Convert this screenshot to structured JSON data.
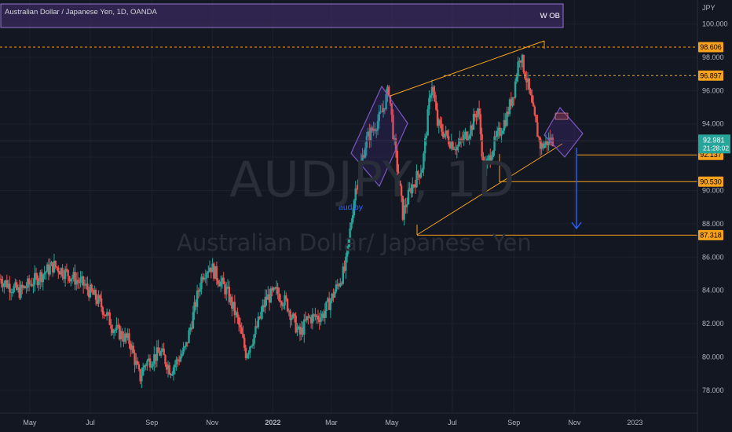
{
  "header": {
    "symbol_title": "Australian Dollar / Japanese Yen, 1D, OANDA",
    "box_label": "W OB"
  },
  "watermark": {
    "ticker": "AUDJPY, 1D",
    "name": "Australian Dollar/ Japanese Yen"
  },
  "annotations": {
    "text_label": "audjpy"
  },
  "price_axis": {
    "currency": "JPY",
    "current_price": "92.981",
    "countdown": "21:28:02",
    "levels": [
      {
        "value": 98.606,
        "label": "98.606",
        "style": "dashed"
      },
      {
        "value": 96.897,
        "label": "96.897",
        "style": "dashed"
      },
      {
        "value": 92.137,
        "label": "92.137",
        "style": "solid"
      },
      {
        "value": 90.53,
        "label": "90.530",
        "style": "solid"
      },
      {
        "value": 87.318,
        "label": "87.318",
        "style": "solid"
      }
    ]
  },
  "colors": {
    "background": "#131722",
    "bull": "#26a69a",
    "bear": "#ef5350",
    "level": "#f7a21b",
    "zone_border": "#7e57c2",
    "arrow": "#2962ff",
    "price_tag": "#26a69a"
  },
  "chart_data": {
    "type": "candlestick",
    "title": "Australian Dollar / Japanese Yen, 1D, OANDA",
    "y_unit": "JPY",
    "ylim": [
      77,
      101
    ],
    "y_ticks": [
      "78.000",
      "80.000",
      "82.000",
      "84.000",
      "86.000",
      "88.000",
      "90.000",
      "92.000",
      "94.000",
      "96.000",
      "98.000",
      "100.000"
    ],
    "x_ticks": [
      "May",
      "Jul",
      "Sep",
      "Nov",
      "2022",
      "Mar",
      "May",
      "Jul",
      "Sep",
      "Nov",
      "2023"
    ],
    "x_tick_dates": [
      "2021-05-01",
      "2021-07-01",
      "2021-09-01",
      "2021-11-01",
      "2022-01-01",
      "2022-03-01",
      "2022-05-01",
      "2022-07-01",
      "2022-09-01",
      "2022-11-01",
      "2023-01-01"
    ],
    "x_range": [
      "2021-04-01",
      "2023-03-05"
    ],
    "path_points": [
      [
        "2021-04-01",
        84.7
      ],
      [
        "2021-04-20",
        83.9
      ],
      [
        "2021-05-10",
        84.8
      ],
      [
        "2021-05-25",
        85.5
      ],
      [
        "2021-06-08",
        85.0
      ],
      [
        "2021-06-25",
        84.3
      ],
      [
        "2021-07-10",
        83.3
      ],
      [
        "2021-07-25",
        81.7
      ],
      [
        "2021-08-10",
        80.9
      ],
      [
        "2021-08-20",
        78.7
      ],
      [
        "2021-08-25",
        79.6
      ],
      [
        "2021-09-10",
        80.3
      ],
      [
        "2021-09-20",
        79.2
      ],
      [
        "2021-10-05",
        80.5
      ],
      [
        "2021-10-22",
        85.0
      ],
      [
        "2021-10-30",
        85.5
      ],
      [
        "2021-11-05",
        84.9
      ],
      [
        "2021-11-16",
        83.9
      ],
      [
        "2021-11-26",
        82.3
      ],
      [
        "2021-12-05",
        80.2
      ],
      [
        "2021-12-15",
        81.6
      ],
      [
        "2021-12-25",
        83.5
      ],
      [
        "2022-01-05",
        83.9
      ],
      [
        "2022-01-15",
        83.2
      ],
      [
        "2022-01-28",
        81.3
      ],
      [
        "2022-02-05",
        82.3
      ],
      [
        "2022-02-20",
        82.5
      ],
      [
        "2022-03-01",
        83.5
      ],
      [
        "2022-03-15",
        85.3
      ],
      [
        "2022-03-25",
        90.0
      ],
      [
        "2022-04-05",
        93.0
      ],
      [
        "2022-04-20",
        94.5
      ],
      [
        "2022-04-28",
        96.1
      ],
      [
        "2022-05-03",
        93.0
      ],
      [
        "2022-05-12",
        88.6
      ],
      [
        "2022-05-20",
        90.1
      ],
      [
        "2022-06-01",
        91.5
      ],
      [
        "2022-06-10",
        96.6
      ],
      [
        "2022-06-16",
        94.0
      ],
      [
        "2022-06-28",
        93.0
      ],
      [
        "2022-07-06",
        92.6
      ],
      [
        "2022-07-20",
        93.8
      ],
      [
        "2022-07-27",
        95.0
      ],
      [
        "2022-08-02",
        91.0
      ],
      [
        "2022-08-10",
        92.5
      ],
      [
        "2022-08-25",
        94.5
      ],
      [
        "2022-09-01",
        96.0
      ],
      [
        "2022-09-07",
        98.3
      ],
      [
        "2022-09-14",
        96.6
      ],
      [
        "2022-09-21",
        94.5
      ],
      [
        "2022-09-28",
        92.6
      ],
      [
        "2022-10-06",
        93.0
      ],
      [
        "2022-10-11",
        93.0
      ]
    ],
    "price_levels": [
      98.606,
      96.897,
      92.137,
      90.53,
      87.318
    ],
    "last_price": 92.981,
    "series": [
      {
        "name": "audjpy"
      }
    ]
  }
}
